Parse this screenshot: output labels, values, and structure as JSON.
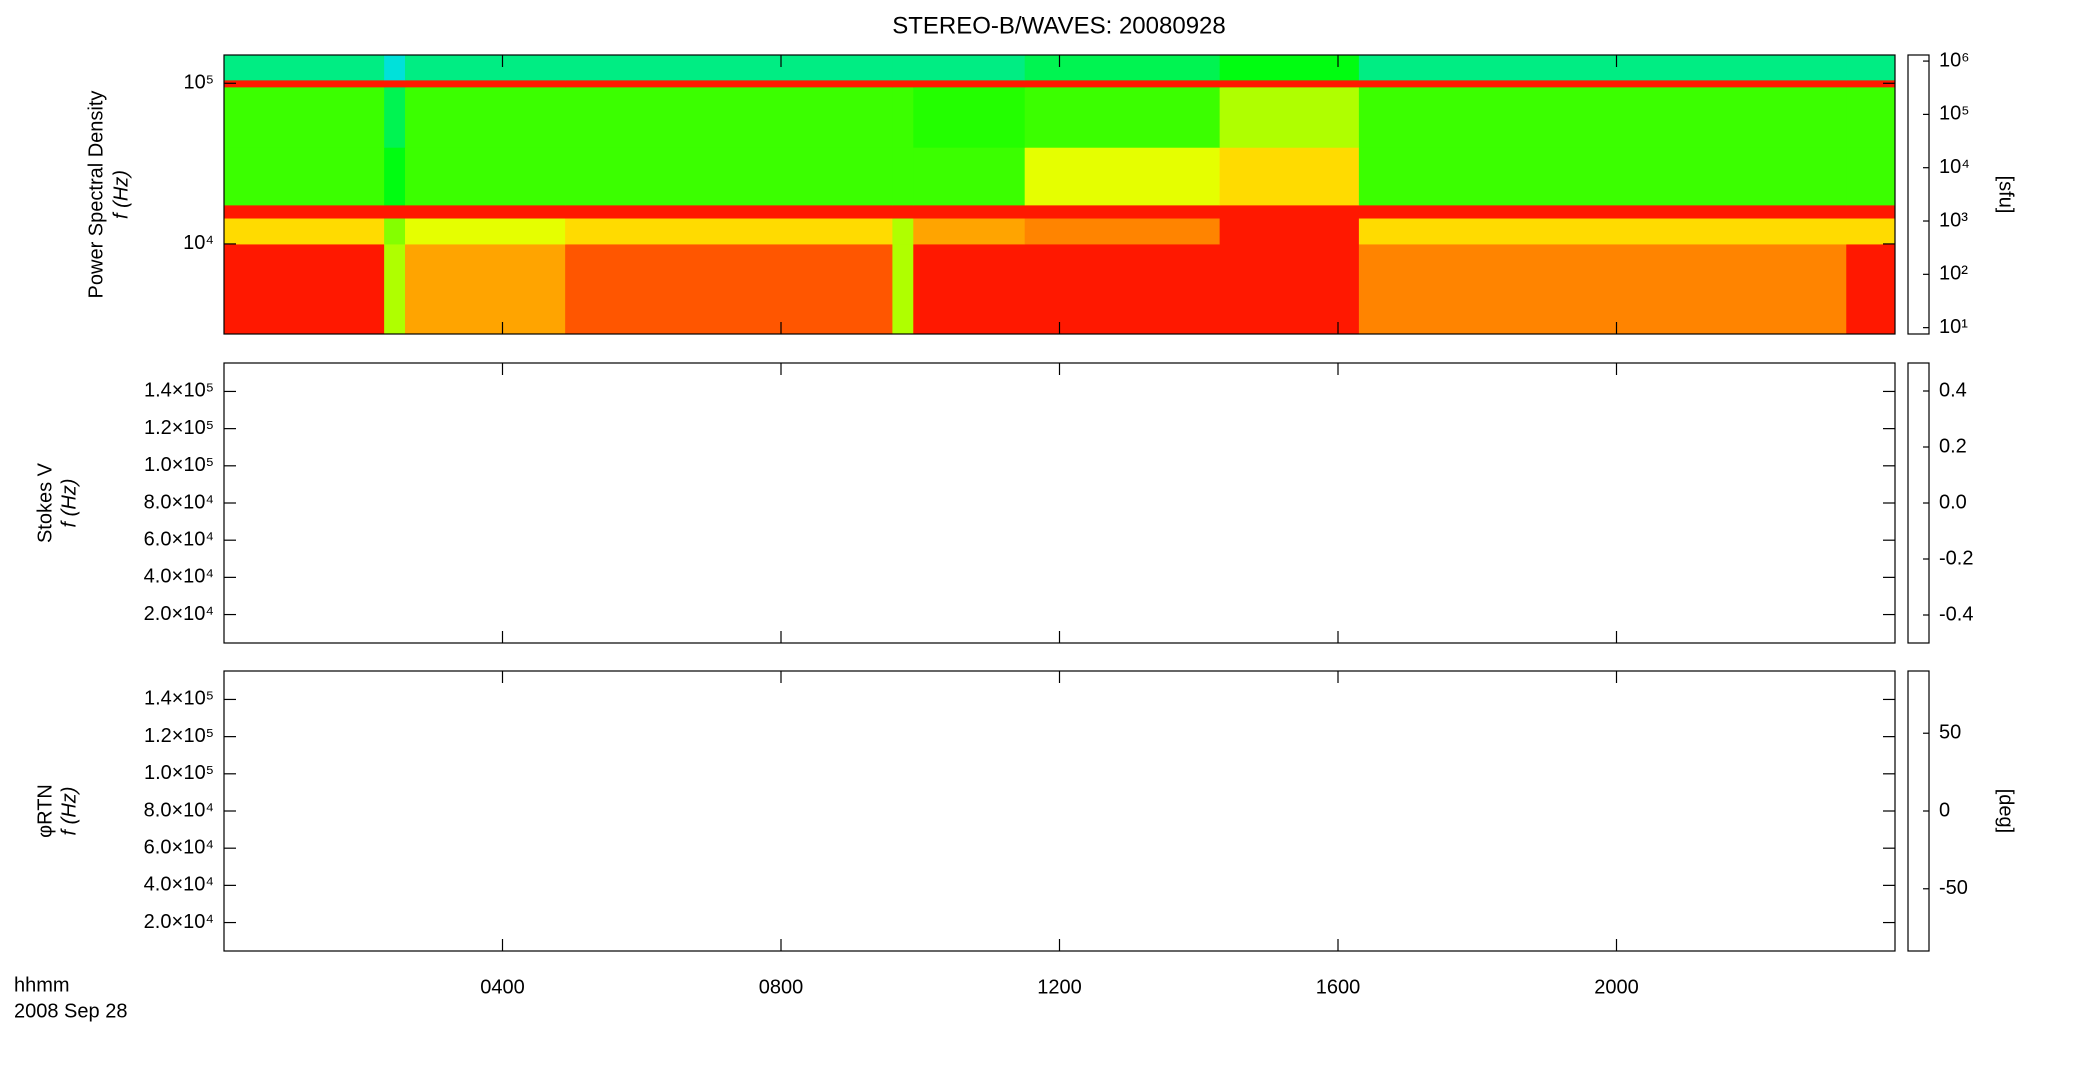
{
  "chart_data": [
    {
      "type": "heatmap",
      "title": "STEREO-B/WAVES: 20080928",
      "ylabel": [
        "Power Spectral Density",
        "f (Hz)"
      ],
      "ylog": true,
      "ylim": [
        2750,
        150000
      ],
      "yticks": [
        {
          "value": 10000,
          "label": "10⁴"
        },
        {
          "value": 100000,
          "label": "10⁵"
        }
      ],
      "x_edges": [
        0,
        2.3,
        2.6,
        4.9,
        9.6,
        9.9,
        11.5,
        14.3,
        16.3,
        23.3,
        24
      ],
      "y_edges": [
        2750,
        10000,
        14500,
        17500,
        40000,
        95000,
        105000,
        150000
      ],
      "z": [
        [
          1000000,
          30000,
          200000,
          500000,
          30000,
          1000000,
          1000000,
          1000000,
          300000,
          1000000
        ],
        [
          100000,
          20000,
          50000,
          100000,
          30000,
          200000,
          300000,
          1000000,
          100000,
          100000
        ],
        [
          1000000,
          1000000,
          1000000,
          1000000,
          1000000,
          1000000,
          1000000,
          1000000,
          1000000,
          1000000
        ],
        [
          10000,
          5000,
          10000,
          10000,
          10000,
          10000,
          50000,
          100000,
          10000,
          10000
        ],
        [
          10000,
          3000,
          10000,
          10000,
          10000,
          8000,
          10000,
          30000,
          10000,
          10000
        ],
        [
          1000000,
          1000000,
          1000000,
          1000000,
          1000000,
          1000000,
          1000000,
          1000000,
          1000000,
          1000000
        ],
        [
          2000,
          1000,
          2000,
          2000,
          2000,
          2000,
          3000,
          5000,
          2000,
          2000
        ]
      ],
      "zlog": true,
      "zlim": [
        7.6,
        1300000
      ],
      "zticks": [
        {
          "value": 10,
          "label": "10¹"
        },
        {
          "value": 100,
          "label": "10²"
        },
        {
          "value": 1000,
          "label": "10³"
        },
        {
          "value": 10000,
          "label": "10⁴"
        },
        {
          "value": 100000,
          "label": "10⁵"
        },
        {
          "value": 1000000,
          "label": "10⁶"
        }
      ],
      "zlabel": "[sfu]"
    },
    {
      "type": "heatmap",
      "ylabel": [
        "Stokes V",
        "f (Hz)"
      ],
      "ylog": false,
      "ylim": [
        4700,
        155300
      ],
      "yticks": [
        {
          "value": 20000,
          "label": "2.0×10⁴"
        },
        {
          "value": 40000,
          "label": "4.0×10⁴"
        },
        {
          "value": 60000,
          "label": "6.0×10⁴"
        },
        {
          "value": 80000,
          "label": "8.0×10⁴"
        },
        {
          "value": 100000,
          "label": "1.0×10⁵"
        },
        {
          "value": 120000,
          "label": "1.2×10⁵"
        },
        {
          "value": 140000,
          "label": "1.4×10⁵"
        }
      ],
      "zlog": false,
      "zlim": [
        -0.5,
        0.5
      ],
      "zticks": [
        -0.4,
        -0.2,
        {
          "value": 0,
          "label": "0.0"
        },
        0.2,
        0.4
      ]
    },
    {
      "type": "heatmap",
      "ylabel": [
        "φRTN",
        "f (Hz)"
      ],
      "ylog": false,
      "ylim": [
        4700,
        155300
      ],
      "yticks": [
        {
          "value": 20000,
          "label": "2.0×10⁴"
        },
        {
          "value": 40000,
          "label": "4.0×10⁴"
        },
        {
          "value": 60000,
          "label": "6.0×10⁴"
        },
        {
          "value": 80000,
          "label": "8.0×10⁴"
        },
        {
          "value": 100000,
          "label": "1.0×10⁵"
        },
        {
          "value": 120000,
          "label": "1.2×10⁵"
        },
        {
          "value": 140000,
          "label": "1.4×10⁵"
        }
      ],
      "zlog": false,
      "zlim": [
        -90,
        90
      ],
      "zticks": [
        -50,
        0,
        50
      ],
      "zlabel": "[deg]",
      "xlim": [
        0,
        24
      ],
      "xticks": [
        {
          "value": 4,
          "label": "0400"
        },
        {
          "value": 8,
          "label": "0800"
        },
        {
          "value": 12,
          "label": "1200"
        },
        {
          "value": 16,
          "label": "1600"
        },
        {
          "value": 20,
          "label": "2000"
        }
      ],
      "xlabel": [
        "hhmm",
        "2008 Sep 28"
      ]
    }
  ]
}
